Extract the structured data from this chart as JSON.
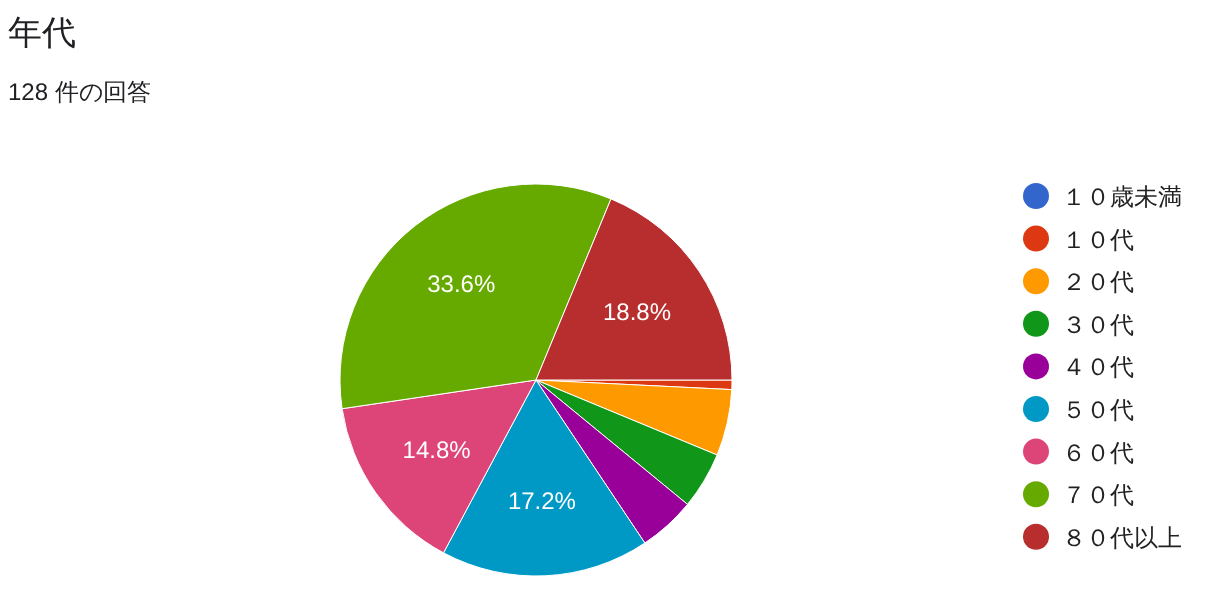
{
  "chart_data": {
    "type": "pie",
    "title": "年代",
    "subtitle": "128 件の回答",
    "categories": [
      "１０歳未満",
      "１０代",
      "２０代",
      "３０代",
      "４０代",
      "５０代",
      "６０代",
      "７０代",
      "８０代以上"
    ],
    "values": [
      0,
      0.78,
      5.47,
      4.69,
      4.69,
      17.19,
      14.84,
      33.59,
      18.75
    ],
    "colors": [
      "#3366cc",
      "#dc3912",
      "#ff9900",
      "#109618",
      "#990099",
      "#0099c6",
      "#dd4477",
      "#66aa00",
      "#b82e2e"
    ],
    "value_labels": [
      null,
      null,
      null,
      null,
      null,
      "17.2%",
      "14.8%",
      "33.6%",
      "18.8%"
    ],
    "legend": "right"
  }
}
